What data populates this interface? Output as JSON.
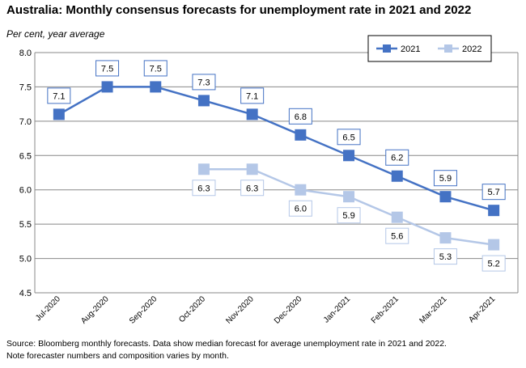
{
  "title": "Australia: Monthly consensus forecasts for unemployment rate in 2021 and 2022",
  "subtitle": "Per cent, year average",
  "source_lines": [
    "Source: Bloomberg monthly forecasts.  Data show median forecast for average unemployment rate in 2021 and 2022.",
    "Note forecaster numbers and composition varies by month."
  ],
  "chart_data": {
    "type": "line",
    "categories": [
      "Jul-2020",
      "Aug-2020",
      "Sep-2020",
      "Oct-2020",
      "Nov-2020",
      "Dec-2020",
      "Jan-2021",
      "Feb-2021",
      "Mar-2021",
      "Apr-2021"
    ],
    "series": [
      {
        "name": "2021",
        "color": "#4472c4",
        "values": [
          7.1,
          7.5,
          7.5,
          7.3,
          7.1,
          6.8,
          6.5,
          6.2,
          5.9,
          5.7
        ],
        "label_position": "above"
      },
      {
        "name": "2022",
        "color": "#b4c7e7",
        "values": [
          null,
          null,
          null,
          6.3,
          6.3,
          6.0,
          5.9,
          5.6,
          5.3,
          5.2
        ],
        "label_position": "below"
      }
    ],
    "ylim": [
      4.5,
      8.0
    ],
    "yticks": [
      4.5,
      5.0,
      5.5,
      6.0,
      6.5,
      7.0,
      7.5,
      8.0
    ],
    "xlabel": "",
    "ylabel": "",
    "grid": true,
    "legend_position": "top-right"
  }
}
